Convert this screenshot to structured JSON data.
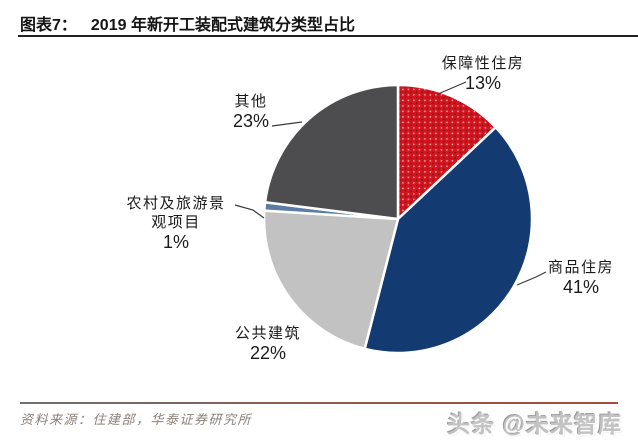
{
  "header": {
    "figure_label": "图表7：",
    "title": "2019 年新开工装配式建筑分类型占比"
  },
  "chart_data": {
    "type": "pie",
    "title": "2019 年新开工装配式建筑分类型占比",
    "unit": "%",
    "start_angle": "top",
    "direction": "clockwise",
    "legend_position": "callout-labels",
    "slices": [
      {
        "name": "保障性住房",
        "value": 13,
        "display": [
          "保障性住房",
          "13%"
        ],
        "color": "#cf1520",
        "fill_style": "dotted"
      },
      {
        "name": "商品住房",
        "value": 41,
        "display": [
          "商品住房",
          "41%"
        ],
        "color": "#143a72",
        "fill_style": "solid"
      },
      {
        "name": "公共建筑",
        "value": 22,
        "display": [
          "公共建筑",
          "22%"
        ],
        "color": "#c2c2c2",
        "fill_style": "solid"
      },
      {
        "name": "农村及旅游景观项目",
        "value": 1,
        "display": [
          "农村及旅游景",
          "观项目",
          "1%"
        ],
        "color": "#5b7ca3",
        "fill_style": "solid"
      },
      {
        "name": "其他",
        "value": 23,
        "display": [
          "其他",
          "23%"
        ],
        "color": "#4d4d4f",
        "fill_style": "solid"
      }
    ]
  },
  "footer": {
    "source": "资料来源：住建部，华泰证券研究所",
    "watermark": "头条 @未来智库"
  },
  "colors": {
    "accent_red": "#cf1520",
    "navy": "#143a72",
    "dark_gray": "#4d4d4f",
    "light_gray": "#c2c2c2",
    "steel_blue": "#5b7ca3",
    "title_rule": "#20202a",
    "source_text": "#8b8179"
  }
}
